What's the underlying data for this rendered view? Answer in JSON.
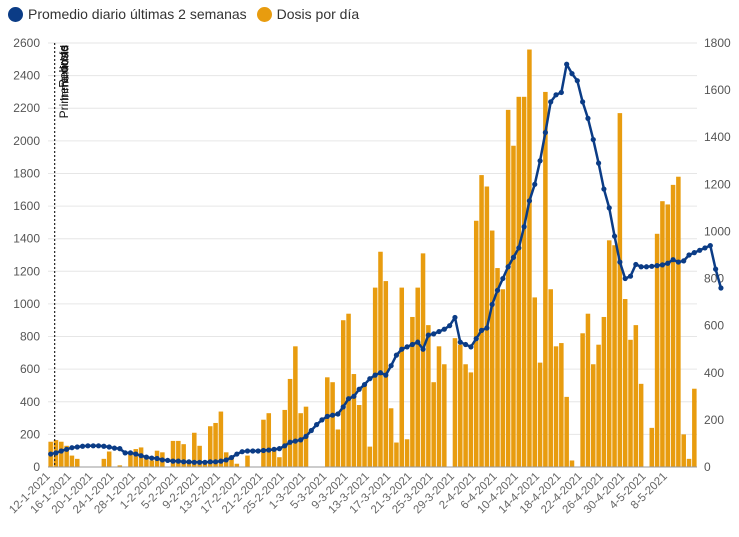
{
  "chart_data": {
    "type": "bar",
    "legend": [
      {
        "label": "Promedio diario últimas 2 semanas",
        "color": "#0b3c86"
      },
      {
        "label": "Dosis por día",
        "color": "#e89c0f"
      }
    ],
    "y_left": {
      "min": 0,
      "max": 2600,
      "ticks": [
        0,
        200,
        400,
        600,
        800,
        1000,
        1200,
        1400,
        1600,
        1800,
        2000,
        2200,
        2400,
        2600
      ]
    },
    "y_right": {
      "min": 0,
      "max": 1800,
      "ticks": [
        0,
        200,
        400,
        600,
        800,
        1000,
        1200,
        1400,
        1600,
        1800
      ]
    },
    "x_tick_labels": [
      "12-1-2021",
      "16-1-2021",
      "20-1-2021",
      "24-1-2021",
      "28-1-2021",
      "1-2-2021",
      "5-2-2021",
      "9-2-2021",
      "13-2-2021",
      "17-2-2021",
      "21-2-2021",
      "25-2-2021",
      "1-3-2021",
      "5-3-2021",
      "9-3-2021",
      "13-3-2021",
      "17-3-2021",
      "21-3-2021",
      "25-3-2021",
      "29-3-2021",
      "2-4-2021",
      "6-4-2021",
      "10-4-2021",
      "14-4-2021",
      "18-4-2021",
      "22-4-2021",
      "26-4-2021",
      "30-4-2021",
      "4-5-2021",
      "8-5-2021"
    ],
    "annotations": [
      {
        "label": "Rebrote",
        "day": 0
      },
      {
        "label": "Primera dosis",
        "day": 0
      },
      {
        "label": "Inmunidad",
        "day": 0
      }
    ],
    "series": [
      {
        "name": "Dosis por día",
        "axis": "left",
        "values": [
          155,
          165,
          155,
          130,
          70,
          50,
          0,
          0,
          0,
          0,
          50,
          95,
          0,
          10,
          0,
          80,
          110,
          120,
          60,
          40,
          100,
          90,
          0,
          160,
          160,
          140,
          30,
          210,
          130,
          20,
          250,
          270,
          340,
          90,
          70,
          20,
          0,
          70,
          0,
          0,
          290,
          330,
          100,
          60,
          350,
          540,
          740,
          330,
          370,
          0,
          0,
          0,
          550,
          520,
          230,
          900,
          940,
          570,
          380,
          510,
          125,
          1100,
          1320,
          1140,
          360,
          150,
          1100,
          170,
          920,
          1100,
          1310,
          870,
          520,
          740,
          630,
          0,
          790,
          750,
          630,
          580,
          1510,
          1790,
          1720,
          1450,
          1220,
          1090,
          2190,
          1970,
          2270,
          2270,
          2560,
          1040,
          640,
          2300,
          1090,
          740,
          760,
          430,
          40,
          0,
          820,
          940,
          630,
          750,
          920,
          1390,
          1360,
          2170,
          1030,
          780,
          870,
          510,
          0,
          240,
          1430,
          1630,
          1610,
          1730,
          1780,
          200,
          50,
          480
        ]
      },
      {
        "name": "Promedio diario últimas 2 semanas",
        "axis": "right",
        "values": [
          55,
          60,
          68,
          75,
          82,
          85,
          88,
          90,
          90,
          90,
          88,
          85,
          80,
          78,
          60,
          60,
          55,
          48,
          42,
          38,
          36,
          30,
          28,
          25,
          25,
          22,
          22,
          20,
          20,
          20,
          22,
          22,
          25,
          30,
          40,
          55,
          65,
          68,
          68,
          68,
          70,
          72,
          75,
          78,
          90,
          105,
          110,
          115,
          130,
          155,
          180,
          200,
          215,
          220,
          225,
          255,
          290,
          300,
          330,
          350,
          375,
          390,
          400,
          390,
          430,
          475,
          500,
          510,
          520,
          530,
          500,
          560,
          565,
          575,
          585,
          600,
          635,
          530,
          520,
          510,
          545,
          580,
          590,
          690,
          750,
          800,
          850,
          890,
          930,
          1020,
          1130,
          1200,
          1300,
          1420,
          1550,
          1580,
          1590,
          1710,
          1670,
          1640,
          1550,
          1480,
          1390,
          1290,
          1180,
          1100,
          980,
          870,
          800,
          810,
          860,
          850,
          850,
          852,
          855,
          858,
          865,
          880,
          870,
          875,
          900,
          910,
          920,
          930,
          940,
          840,
          760
        ]
      }
    ]
  }
}
